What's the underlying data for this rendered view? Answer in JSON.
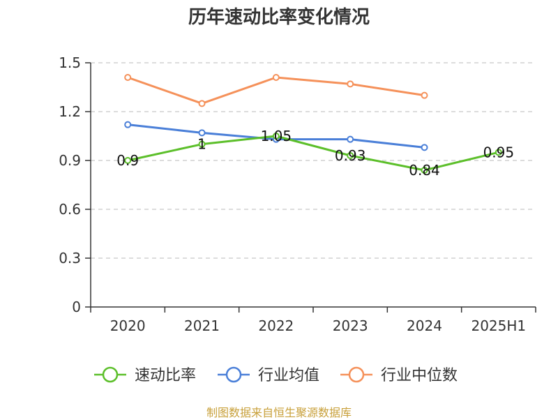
{
  "chart_data": {
    "type": "line",
    "title": "历年速动比率变化情况",
    "categories": [
      "2020",
      "2021",
      "2022",
      "2023",
      "2024",
      "2025H1"
    ],
    "ylim": [
      0,
      1.5
    ],
    "yticks": [
      "0",
      "0.3",
      "0.6",
      "0.9",
      "1.2",
      "1.5"
    ],
    "ytick_values": [
      0,
      0.3,
      0.6,
      0.9,
      1.2,
      1.5
    ],
    "grid": true,
    "legend_position": "bottom",
    "series": [
      {
        "name": "速动比率",
        "color": "#5cbf2a",
        "values": [
          0.9,
          1,
          1.05,
          0.93,
          0.84,
          0.95
        ],
        "labels": [
          "0.9",
          "1",
          "1.05",
          "0.93",
          "0.84",
          "0.95"
        ]
      },
      {
        "name": "行业均值",
        "color": "#4a7fd8",
        "values": [
          1.12,
          1.07,
          1.03,
          1.03,
          0.98,
          null
        ]
      },
      {
        "name": "行业中位数",
        "color": "#f5915a",
        "values": [
          1.41,
          1.25,
          1.41,
          1.37,
          1.3,
          null
        ]
      }
    ]
  },
  "footer": "制图数据来自恒生聚源数据库"
}
